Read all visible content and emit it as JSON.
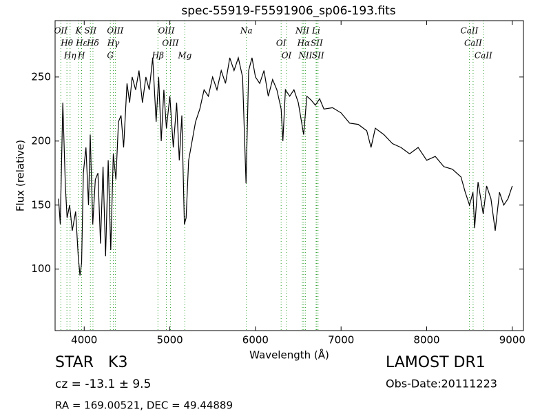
{
  "chart_data": {
    "type": "line",
    "title": "spec-55919-F5591906_sp06-193.fits",
    "x_label": "Wavelength (Å)",
    "y_label": "Flux (relative)",
    "color": "#000000",
    "line_color": "#2ca02c",
    "xlim": [
      3660,
      9130
    ],
    "ylim": [
      52,
      294
    ],
    "xticks": [
      4000,
      5000,
      6000,
      7000,
      8000,
      9000
    ],
    "yticks": [
      100,
      150,
      200,
      250
    ],
    "x": [
      3700,
      3720,
      3750,
      3780,
      3800,
      3830,
      3860,
      3900,
      3930,
      3950,
      3970,
      3990,
      4020,
      4050,
      4070,
      4100,
      4130,
      4160,
      4190,
      4220,
      4250,
      4280,
      4310,
      4340,
      4370,
      4400,
      4430,
      4460,
      4500,
      4530,
      4560,
      4600,
      4640,
      4680,
      4720,
      4760,
      4800,
      4840,
      4870,
      4900,
      4930,
      4960,
      5000,
      5040,
      5080,
      5110,
      5140,
      5170,
      5190,
      5220,
      5260,
      5300,
      5350,
      5400,
      5450,
      5500,
      5550,
      5600,
      5650,
      5700,
      5750,
      5800,
      5850,
      5890,
      5920,
      5960,
      6000,
      6050,
      6100,
      6150,
      6200,
      6250,
      6300,
      6320,
      6350,
      6400,
      6450,
      6500,
      6563,
      6600,
      6650,
      6700,
      6750,
      6800,
      6900,
      7000,
      7100,
      7200,
      7300,
      7350,
      7400,
      7500,
      7600,
      7700,
      7800,
      7900,
      8000,
      8100,
      8200,
      8300,
      8400,
      8450,
      8500,
      8540,
      8560,
      8600,
      8660,
      8700,
      8750,
      8800,
      8850,
      8900,
      8950,
      9000
    ],
    "values": [
      155,
      135,
      230,
      165,
      140,
      150,
      130,
      145,
      110,
      95,
      105,
      175,
      195,
      150,
      205,
      135,
      170,
      175,
      120,
      180,
      110,
      185,
      115,
      190,
      170,
      215,
      220,
      195,
      245,
      230,
      250,
      240,
      255,
      230,
      250,
      240,
      265,
      215,
      250,
      200,
      240,
      210,
      235,
      195,
      230,
      185,
      220,
      135,
      140,
      185,
      200,
      215,
      225,
      240,
      235,
      250,
      240,
      255,
      245,
      265,
      255,
      265,
      250,
      167,
      255,
      265,
      250,
      245,
      255,
      235,
      248,
      240,
      225,
      200,
      240,
      235,
      240,
      230,
      205,
      235,
      232,
      228,
      233,
      225,
      226,
      222,
      214,
      213,
      208,
      195,
      210,
      205,
      198,
      195,
      190,
      195,
      185,
      188,
      180,
      178,
      172,
      160,
      150,
      160,
      132,
      168,
      143,
      165,
      155,
      130,
      160,
      150,
      155,
      165
    ],
    "lines": [
      {
        "label": "OII",
        "wavelength": 3727
      },
      {
        "label": "Hθ",
        "wavelength": 3798
      },
      {
        "label": "Hη",
        "wavelength": 3835
      },
      {
        "label": "K",
        "wavelength": 3934
      },
      {
        "label": "Hε",
        "wavelength": 3970
      },
      {
        "label": "H",
        "wavelength": 3968
      },
      {
        "label": "SII",
        "wavelength": 4072
      },
      {
        "label": "Hδ",
        "wavelength": 4102
      },
      {
        "label": "G",
        "wavelength": 4305
      },
      {
        "label": "OIII",
        "wavelength": 4363
      },
      {
        "label": "Hγ",
        "wavelength": 4340
      },
      {
        "label": "Hβ",
        "wavelength": 4861
      },
      {
        "label": "OIII",
        "wavelength": 4959
      },
      {
        "label": "OIII",
        "wavelength": 5007
      },
      {
        "label": "Mg",
        "wavelength": 5175
      },
      {
        "label": "Na",
        "wavelength": 5894
      },
      {
        "label": "OI",
        "wavelength": 6300
      },
      {
        "label": "OI",
        "wavelength": 6363
      },
      {
        "label": "NII",
        "wavelength": 6548
      },
      {
        "label": "Hα",
        "wavelength": 6563
      },
      {
        "label": "NII",
        "wavelength": 6583
      },
      {
        "label": "Li",
        "wavelength": 6708
      },
      {
        "label": "SII",
        "wavelength": 6716
      },
      {
        "label": "SII",
        "wavelength": 6731
      },
      {
        "label": "CaII",
        "wavelength": 8498
      },
      {
        "label": "CaII",
        "wavelength": 8542
      },
      {
        "label": "CaII",
        "wavelength": 8662
      }
    ]
  },
  "info": {
    "object": "STAR   K3",
    "redshift": "cz = -13.1 ± 9.5",
    "coordinates": "RA = 169.00521, DEC = 49.44889",
    "survey": "LAMOST DR1",
    "obs_date": "Obs-Date:20111223"
  }
}
